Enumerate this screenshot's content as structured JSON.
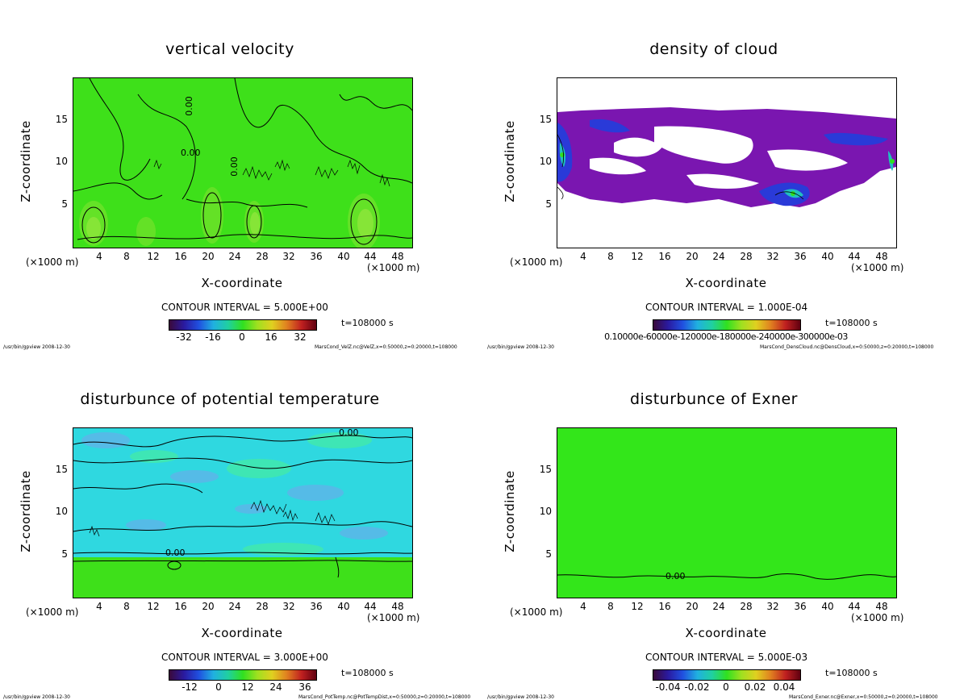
{
  "common": {
    "y_axis_label": "Z-coordinate",
    "x_axis_label": "X-coordinate",
    "x_unit": "(×1000 m)",
    "y_ticks": [
      "5",
      "10",
      "15"
    ],
    "x_ticks": [
      "4",
      "8",
      "12",
      "16",
      "20",
      "24",
      "28",
      "32",
      "36",
      "40",
      "44",
      "48"
    ],
    "time": "t=108000 s",
    "footer_left": "/usr/bin/gpview 2008-12-30"
  },
  "chart_data": [
    {
      "type": "heatmap",
      "title": "vertical velocity",
      "xlabel": "X-coordinate",
      "ylabel": "Z-coordinate",
      "xlim": [
        0,
        50
      ],
      "ylim": [
        0,
        20
      ],
      "contour_interval": "CONTOUR INTERVAL = 5.000E+00",
      "colorbar_ticks": [
        "-32",
        "-16",
        "0",
        "16",
        "32"
      ],
      "contour_labels": [
        "0.00",
        "0.00",
        "0.00"
      ],
      "footer_right": "MarsCond_VelZ.nc@VelZ,x=0:50000,z=0:20000,t=108000"
    },
    {
      "type": "heatmap",
      "title": "density of cloud",
      "xlabel": "X-coordinate",
      "ylabel": "Z-coordinate",
      "xlim": [
        0,
        50
      ],
      "ylim": [
        0,
        20
      ],
      "contour_interval": "CONTOUR INTERVAL = 1.000E-04",
      "colorbar_ticks": [
        "0.10000e-60000e-120000e-180000e-240000e-300000e-03"
      ],
      "footer_right": "MarsCond_DensCloud.nc@DensCloud,x=0:50000,z=0:20000,t=108000"
    },
    {
      "type": "heatmap",
      "title": "disturbunce of potential temperature",
      "xlabel": "X-coordinate",
      "ylabel": "Z-coordinate",
      "xlim": [
        0,
        50
      ],
      "ylim": [
        0,
        20
      ],
      "contour_interval": "CONTOUR INTERVAL = 3.000E+00",
      "colorbar_ticks": [
        "-12",
        "0",
        "12",
        "24",
        "36"
      ],
      "contour_labels": [
        "0.00",
        "0.00"
      ],
      "footer_right": "MarsCond_PotTemp.nc@PotTempDist,x=0:50000,z=0:20000,t=108000"
    },
    {
      "type": "heatmap",
      "title": "disturbunce of Exner",
      "xlabel": "X-coordinate",
      "ylabel": "Z-coordinate",
      "xlim": [
        0,
        50
      ],
      "ylim": [
        0,
        20
      ],
      "contour_interval": "CONTOUR INTERVAL = 5.000E-03",
      "colorbar_ticks": [
        "-0.04",
        "-0.02",
        "0",
        "0.02",
        "0.04"
      ],
      "contour_labels": [
        "0.00"
      ],
      "footer_right": "MarsCond_Exner.nc@Exner,x=0:50000,z=0:20000,t=108000"
    }
  ]
}
